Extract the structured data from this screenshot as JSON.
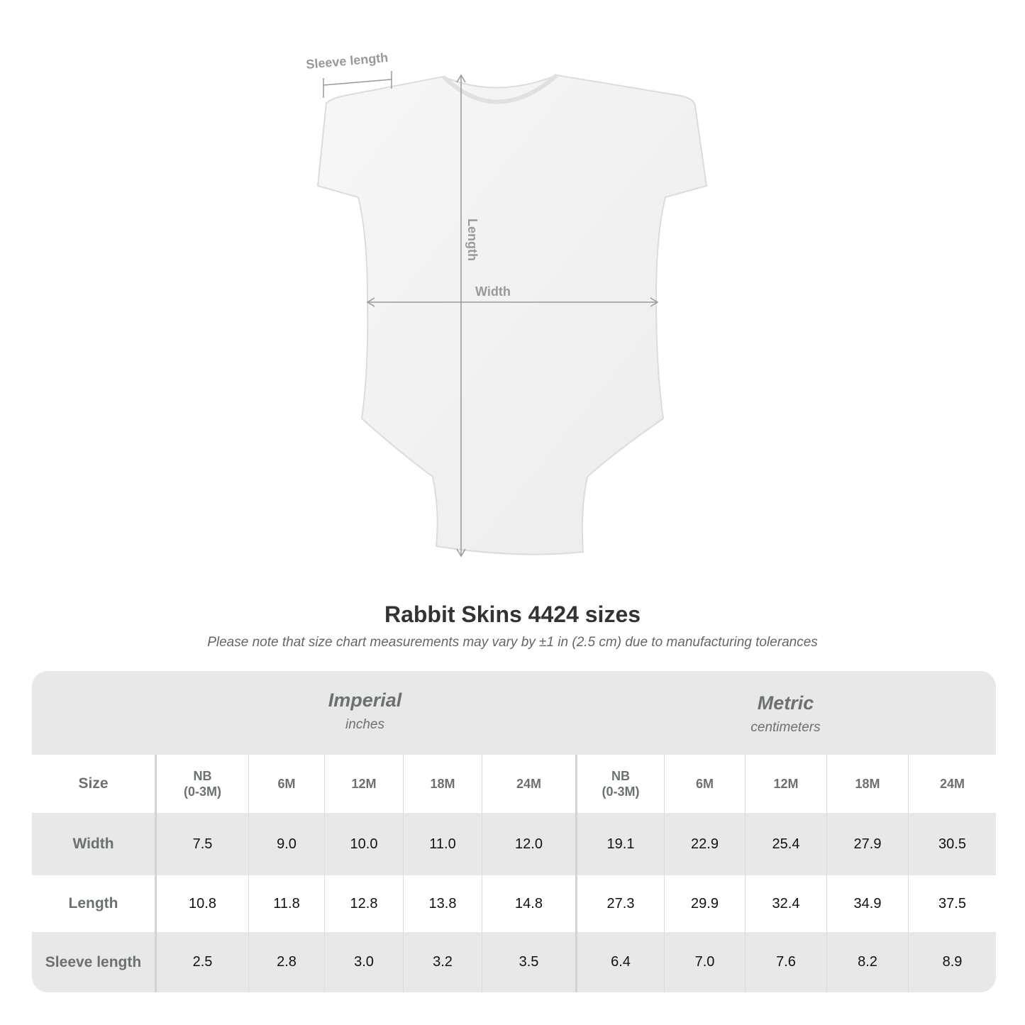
{
  "illustration": {
    "labels": {
      "sleeve": "Sleeve length",
      "length": "Length",
      "width": "Width"
    }
  },
  "title": "Rabbit Skins 4424 sizes",
  "subtitle": "Please note that size chart measurements may vary by ±1 in (2.5 cm) due to manufacturing tolerances",
  "table": {
    "groups": [
      {
        "name": "Imperial",
        "unit": "inches"
      },
      {
        "name": "Metric",
        "unit": "centimeters"
      }
    ],
    "size_label": "Size",
    "sizes": [
      [
        "NB",
        "(0-3M)"
      ],
      [
        "6M"
      ],
      [
        "12M"
      ],
      [
        "18M"
      ],
      [
        "24M"
      ],
      [
        "NB",
        "(0-3M)"
      ],
      [
        "6M"
      ],
      [
        "12M"
      ],
      [
        "18M"
      ],
      [
        "24M"
      ]
    ],
    "rows": [
      {
        "label": "Width",
        "values": [
          "7.5",
          "9.0",
          "10.0",
          "11.0",
          "12.0",
          "19.1",
          "22.9",
          "25.4",
          "27.9",
          "30.5"
        ]
      },
      {
        "label": "Length",
        "values": [
          "10.8",
          "11.8",
          "12.8",
          "13.8",
          "14.8",
          "27.3",
          "29.9",
          "32.4",
          "34.9",
          "37.5"
        ]
      },
      {
        "label": "Sleeve length",
        "values": [
          "2.5",
          "2.8",
          "3.0",
          "3.2",
          "3.5",
          "6.4",
          "7.0",
          "7.6",
          "8.2",
          "8.9"
        ]
      }
    ]
  },
  "colors": {
    "header_bg": "#e8e8e8",
    "label_text": "#6b7173",
    "value_text": "#111111"
  }
}
